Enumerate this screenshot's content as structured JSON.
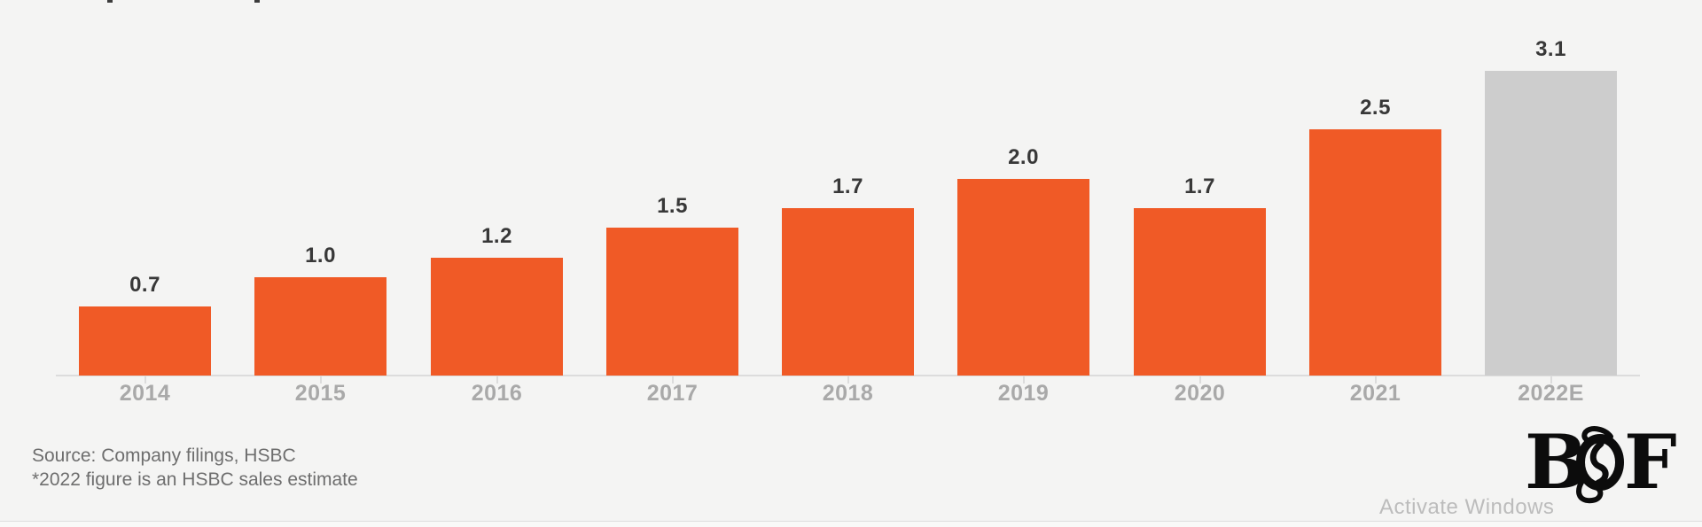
{
  "page": {
    "background": "#F4F4F3"
  },
  "chart_data": {
    "type": "bar",
    "title": "",
    "xlabel": "",
    "ylabel": "",
    "categories": [
      "2014",
      "2015",
      "2016",
      "2017",
      "2018",
      "2019",
      "2020",
      "2021",
      "2022E"
    ],
    "values": [
      0.7,
      1.0,
      1.2,
      1.5,
      1.7,
      2.0,
      1.7,
      2.5,
      3.1
    ],
    "value_labels": [
      "0.7",
      "1.0",
      "1.2",
      "1.5",
      "1.7",
      "2.0",
      "1.7",
      "2.5",
      "3.1"
    ],
    "estimate_flags": [
      false,
      false,
      false,
      false,
      false,
      false,
      false,
      false,
      true
    ],
    "bar_color": "#F05A26",
    "estimate_bar_color": "#CDCDCD",
    "value_label_color": "#383838",
    "category_label_color": "#A9A9A9",
    "axis_color": "#DCDCDC",
    "ylim": [
      0,
      3.5
    ],
    "grid": false,
    "legend": "none",
    "note": "2022E bar rendered gray to mark it as an estimate"
  },
  "footnote": {
    "line1": "Source: Company filings, HSBC",
    "line2": "*2022 figure is an HSBC sales estimate"
  },
  "logo": {
    "brand": "BoF",
    "letter_b": "B",
    "letter_f": "F"
  },
  "watermark": {
    "text": "Activate Windows"
  }
}
